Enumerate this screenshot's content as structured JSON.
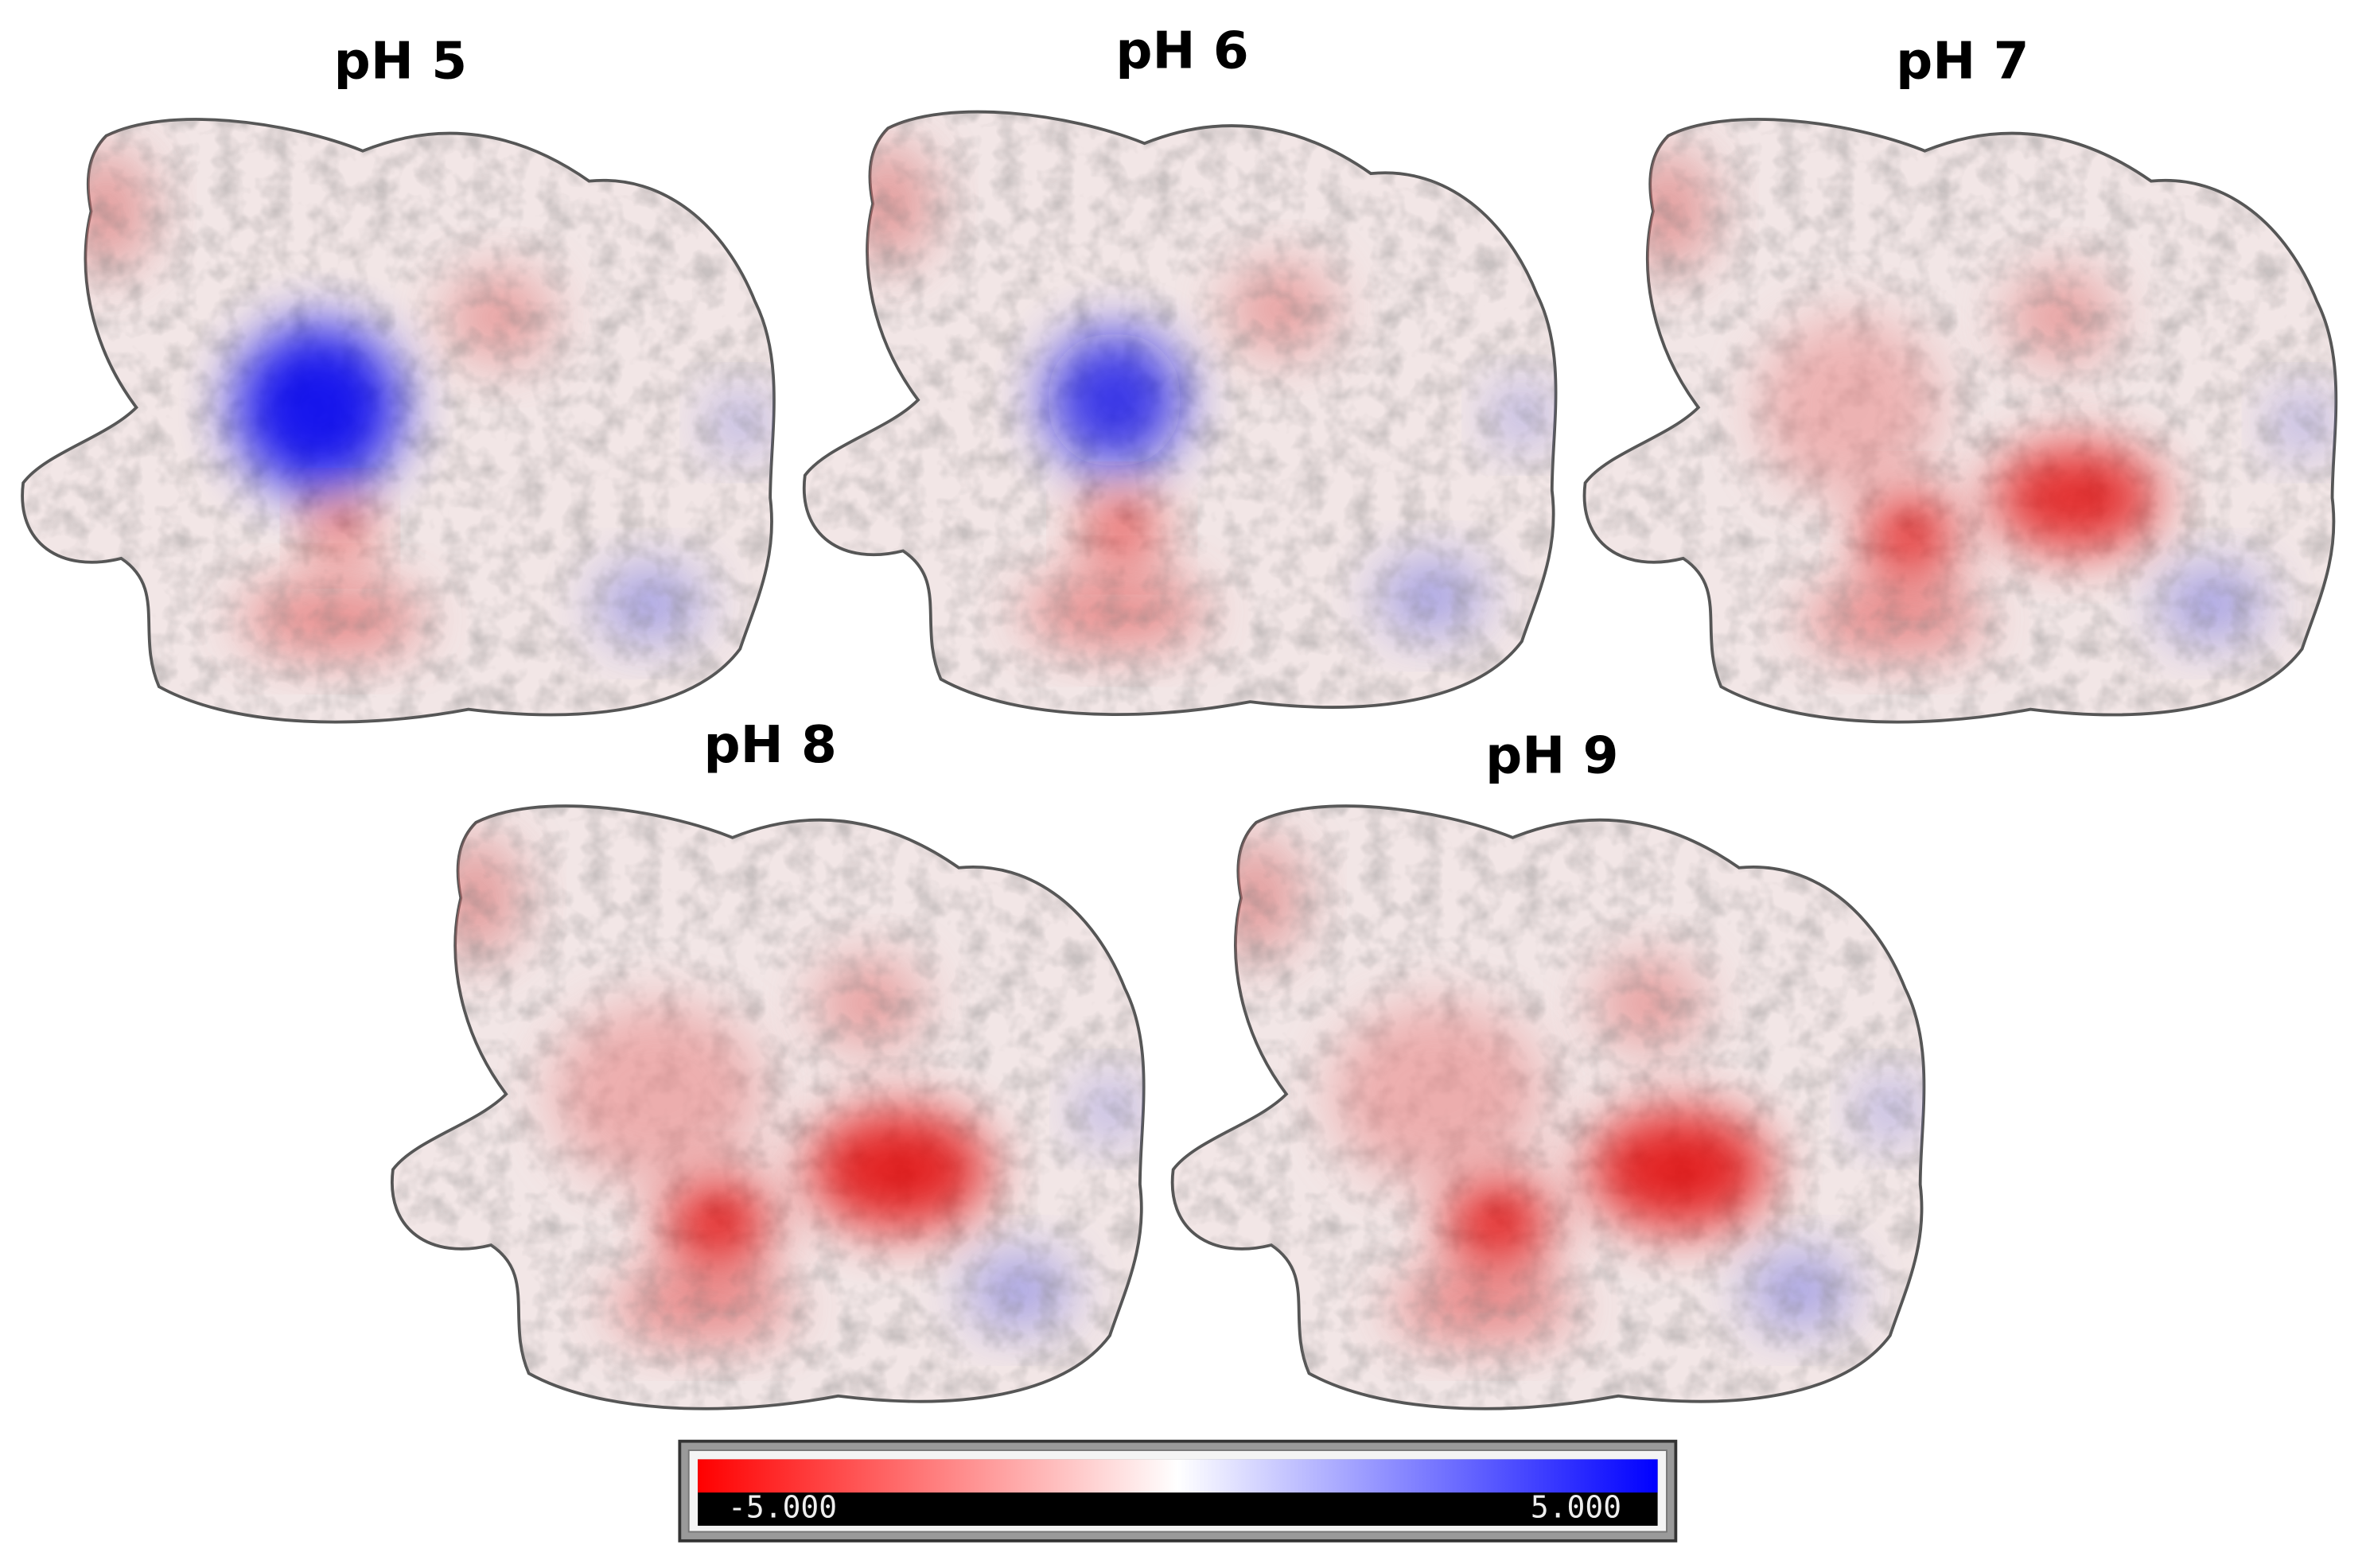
{
  "panels": [
    {
      "title": "pH 5"
    },
    {
      "title": "pH 6"
    },
    {
      "title": "pH 7"
    },
    {
      "title": "pH 8"
    },
    {
      "title": "pH 9"
    }
  ],
  "colorbar": {
    "min_label": "-5.000",
    "max_label": "5.000"
  }
}
